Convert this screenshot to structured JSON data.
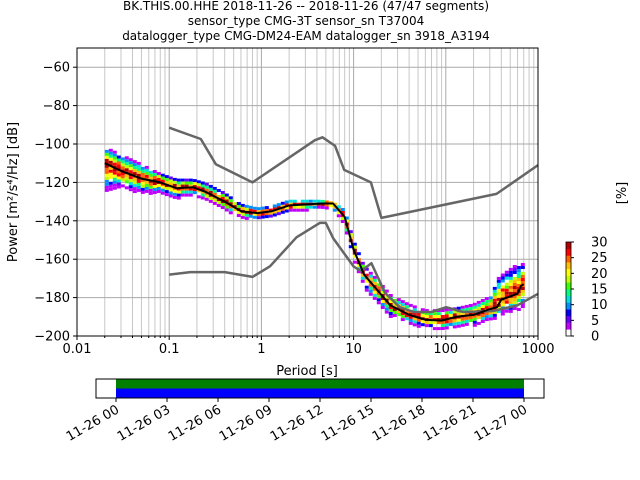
{
  "chart_data": {
    "type": "heatmap",
    "title_lines": [
      "BK.THIS.00.HHE   2018-11-26 -- 2018-11-26  (47/47 segments)",
      "sensor_type CMG-3T sensor_sn T37004",
      "datalogger_type CMG-DM24-EAM datalogger_sn 3918_A3194"
    ],
    "xlabel": "Period [s]",
    "ylabel": "Power [m²/s⁴/Hz] [dB]",
    "x_scale": "log",
    "xlim": [
      0.01,
      1000
    ],
    "ylim": [
      -200,
      -50
    ],
    "x_ticks": [
      {
        "value": 0.01,
        "label": "0.01"
      },
      {
        "value": 0.1,
        "label": "0.1"
      },
      {
        "value": 1,
        "label": "1"
      },
      {
        "value": 10,
        "label": "10"
      },
      {
        "value": 100,
        "label": "100"
      },
      {
        "value": 1000,
        "label": "1000"
      }
    ],
    "y_ticks": [
      {
        "value": -60,
        "label": "−60"
      },
      {
        "value": -80,
        "label": "−80"
      },
      {
        "value": -100,
        "label": "−100"
      },
      {
        "value": -120,
        "label": "−120"
      },
      {
        "value": -140,
        "label": "−140"
      },
      {
        "value": -160,
        "label": "−160"
      },
      {
        "value": -180,
        "label": "−180"
      },
      {
        "value": -200,
        "label": "−200"
      }
    ],
    "grid": true,
    "colorbar": {
      "label": "[%]",
      "range": [
        0,
        30
      ],
      "ticks": [
        {
          "value": 0,
          "label": "0"
        },
        {
          "value": 5,
          "label": "5"
        },
        {
          "value": 10,
          "label": "10"
        },
        {
          "value": 15,
          "label": "15"
        },
        {
          "value": 20,
          "label": "20"
        },
        {
          "value": 25,
          "label": "25"
        },
        {
          "value": 30,
          "label": "30"
        }
      ],
      "colors": [
        "#ffffff",
        "#c200ff",
        "#6a00ff",
        "#0000ff",
        "#0090ff",
        "#00e0e0",
        "#00ff80",
        "#40ff00",
        "#c0ff00",
        "#ffff00",
        "#ffc000",
        "#ff6000",
        "#ff0000",
        "#b00000"
      ]
    },
    "series": [
      {
        "role": "high-noise-model",
        "color": "#666666",
        "x": [
          0.1,
          0.22,
          0.32,
          0.8,
          3.8,
          4.6,
          6.3,
          7.9,
          15.4,
          20,
          354.8,
          1000
        ],
        "y": [
          -91.5,
          -97.4,
          -110.5,
          -120,
          -98,
          -96.5,
          -101,
          -113.5,
          -120,
          -138.5,
          -126,
          -111
        ]
      },
      {
        "role": "low-noise-model",
        "color": "#666666",
        "x": [
          0.1,
          0.17,
          0.4,
          0.8,
          1.24,
          2.4,
          4.3,
          5,
          6,
          10,
          12,
          15.6,
          21.9,
          31.6,
          45,
          70,
          101,
          154,
          328,
          600,
          1000
        ],
        "y": [
          -168,
          -166.7,
          -166.7,
          -169.2,
          -163.7,
          -148.6,
          -141.1,
          -141.1,
          -149,
          -163.8,
          -166.2,
          -162.1,
          -177.5,
          -185,
          -187.5,
          -187.5,
          -185,
          -187.5,
          -187,
          -184,
          -178
        ]
      },
      {
        "role": "mode",
        "color": "#000000",
        "x": [
          0.02,
          0.03,
          0.05,
          0.08,
          0.12,
          0.18,
          0.25,
          0.4,
          0.6,
          0.9,
          1.3,
          2,
          3,
          4.5,
          6,
          8,
          10,
          13,
          18,
          25,
          40,
          60,
          90,
          130,
          200,
          300,
          360,
          400,
          600,
          650,
          700
        ],
        "y": [
          -110,
          -114,
          -118,
          -120,
          -123,
          -122.5,
          -125,
          -130,
          -135,
          -136,
          -135,
          -132,
          -131.5,
          -131,
          -131,
          -138,
          -155,
          -168,
          -176,
          -184,
          -189,
          -191.5,
          -192,
          -190,
          -189,
          -186,
          -185,
          -181,
          -178,
          -174,
          -173
        ]
      }
    ],
    "density_band": {
      "x": [
        0.02,
        0.03,
        0.05,
        0.08,
        0.12,
        0.18,
        0.25,
        0.4,
        0.6,
        0.9,
        1.3,
        2,
        3,
        4.5,
        6,
        8,
        10,
        13,
        18,
        25,
        40,
        60,
        90,
        130,
        200,
        300,
        360,
        400,
        600,
        700
      ],
      "y_low": [
        -124,
        -122,
        -125,
        -125,
        -128,
        -126,
        -129,
        -134,
        -138,
        -139,
        -138,
        -135,
        -134,
        -133,
        -134,
        -142,
        -160,
        -174,
        -182,
        -189,
        -193,
        -195,
        -196,
        -195,
        -194,
        -191,
        -190,
        -188,
        -186,
        -184
      ],
      "y_high": [
        -101,
        -105,
        -110,
        -115,
        -118,
        -118,
        -120,
        -125,
        -131,
        -133,
        -132,
        -129,
        -129,
        -129,
        -130,
        -134,
        -150,
        -163,
        -170,
        -178,
        -183,
        -186,
        -186,
        -185,
        -183,
        -179,
        -170,
        -168,
        -162,
        -162
      ]
    },
    "timeline": {
      "tick_labels": [
        "11-26 00",
        "11-26 03",
        "11-26 06",
        "11-26 09",
        "11-26 12",
        "11-26 15",
        "11-26 18",
        "11-26 21",
        "11-27 00"
      ],
      "coverage_start": "11-26 00",
      "coverage_end": "11-27 00",
      "bar_colors": [
        "#008000",
        "#0000ff"
      ]
    }
  }
}
